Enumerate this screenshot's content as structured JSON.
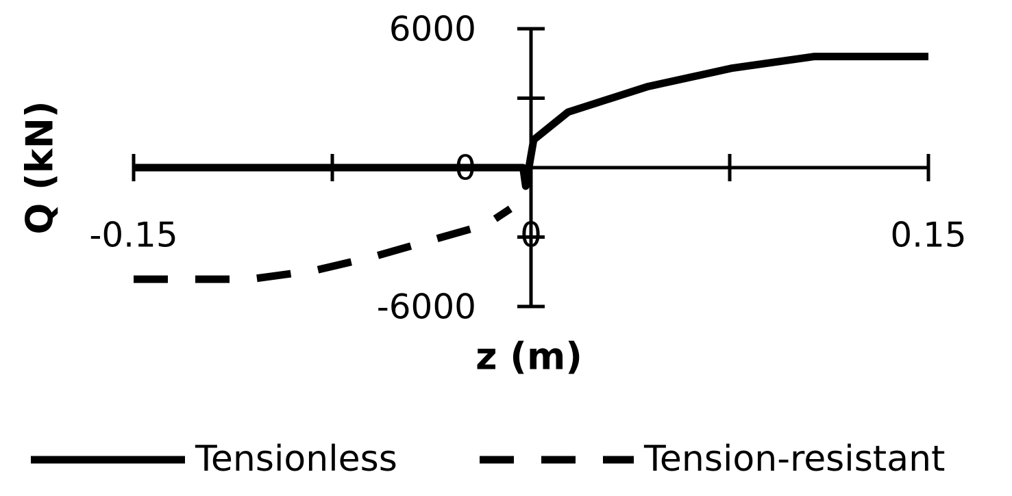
{
  "chart_data": {
    "type": "line",
    "xlabel": "z (m)",
    "ylabel": "Q (kN)",
    "xlim": [
      -0.15,
      0.15
    ],
    "xticks": [
      -0.15,
      0,
      0.15
    ],
    "minor_xticks": [
      -0.075,
      0.075
    ],
    "ylim": [
      -6000,
      6000
    ],
    "yticks": [
      -6000,
      0,
      6000
    ],
    "minor_yticks": [
      -3000,
      3000
    ],
    "series": [
      {
        "name": "Tensionless",
        "color": "#000000",
        "dash": false,
        "x": [
          -0.15,
          -0.003,
          -0.002,
          0.001,
          0.014,
          0.044,
          0.076,
          0.107,
          0.15
        ],
        "values": [
          0,
          0,
          -800,
          1200,
          2400,
          3500,
          4300,
          4800,
          4800
        ]
      },
      {
        "name": "Tension-resistant",
        "color": "#000000",
        "dash": true,
        "x": [
          -0.15,
          -0.106,
          -0.0815,
          -0.0595,
          -0.035,
          -0.0168,
          -0.0078
        ],
        "values": [
          -4820,
          -4820,
          -4440,
          -3850,
          -3050,
          -2460,
          -1780
        ]
      }
    ]
  }
}
